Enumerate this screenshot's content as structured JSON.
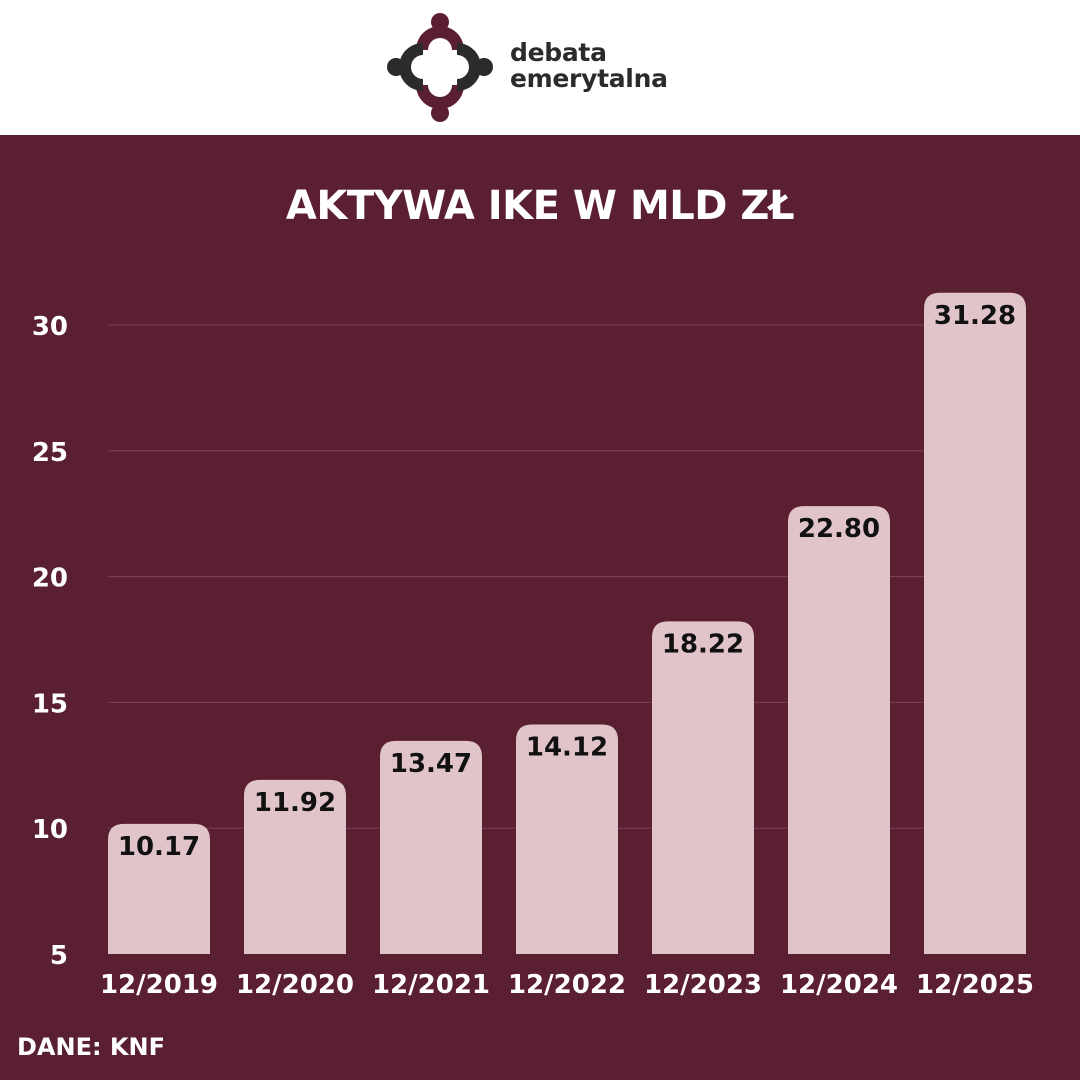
{
  "brand": {
    "name_line1": "debata",
    "name_line2": "emerytalna",
    "colors": {
      "dark": "#2b2b2b",
      "accent": "#5a1f31"
    },
    "icon": "people-circle-logo-icon"
  },
  "colors": {
    "background": "#5a1f31",
    "bar": "#e1c4ca",
    "text": "#ffffff",
    "label_text": "#111111",
    "grid": "#7a4455"
  },
  "chart_data": {
    "type": "bar",
    "title": "AKTYWA IKE W MLD ZŁ",
    "categories": [
      "12/2019",
      "12/2020",
      "12/2021",
      "12/2022",
      "12/2023",
      "12/2024",
      "12/2025"
    ],
    "values": [
      10.17,
      11.92,
      13.47,
      14.12,
      18.22,
      22.8,
      31.28
    ],
    "value_labels": [
      "10.17",
      "11.92",
      "13.47",
      "14.12",
      "18.22",
      "22.80",
      "31.28"
    ],
    "yticks": [
      "5",
      "10",
      "15",
      "20",
      "25",
      "30"
    ],
    "ylim": [
      5,
      31.28
    ],
    "grid": true,
    "xlabel": "",
    "ylabel": ""
  },
  "source": "DANE: KNF"
}
